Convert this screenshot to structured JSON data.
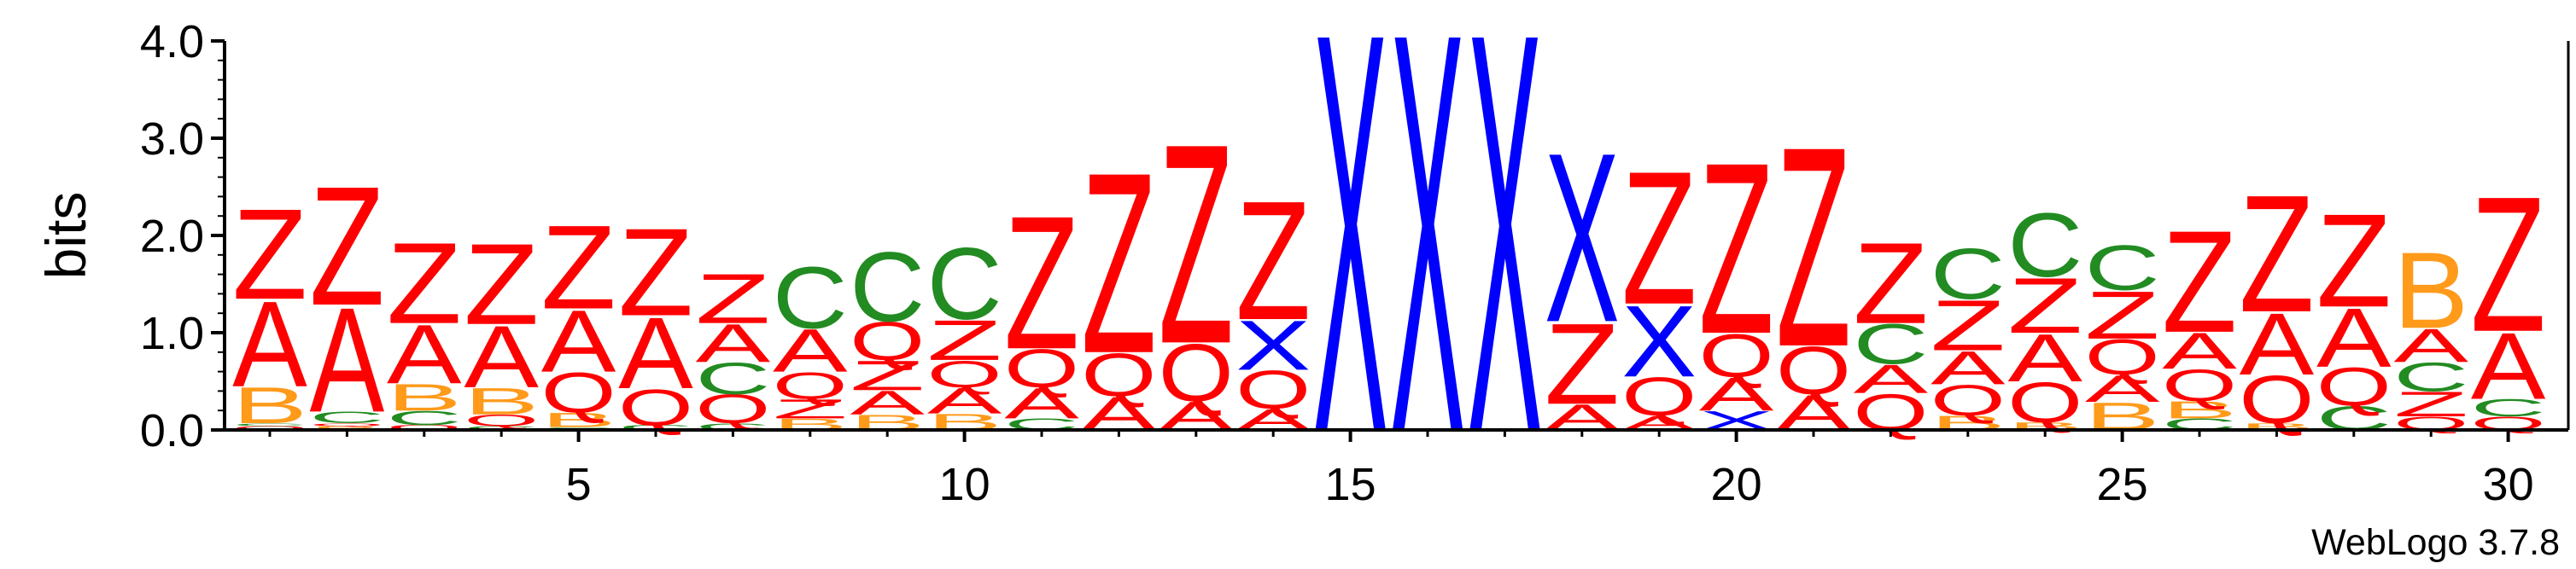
{
  "chart_data": {
    "type": "sequence-logo",
    "ylabel": "bits",
    "ylim": [
      0,
      4.0
    ],
    "y_ticks": [
      "0.0",
      "1.0",
      "2.0",
      "3.0",
      "4.0"
    ],
    "x_tick_labels": [
      "5",
      "10",
      "15",
      "20",
      "25",
      "30"
    ],
    "x_tick_positions": [
      5,
      10,
      15,
      20,
      25,
      30
    ],
    "footer": "WebLogo 3.7.8",
    "colors": {
      "Z": "#ff0000",
      "A": "#ff0000",
      "X": "#0000ff",
      "B": "#ff9a1a",
      "C": "#228b22",
      "Q": "#ff0000"
    },
    "stacks": [
      [
        [
          "Q",
          0.04
        ],
        [
          "C",
          0.03
        ],
        [
          "B",
          0.38
        ],
        [
          "A",
          0.9
        ],
        [
          "Z",
          0.95
        ]
      ],
      [
        [
          "B",
          0.04
        ],
        [
          "Q",
          0.03
        ],
        [
          "C",
          0.12
        ],
        [
          "A",
          1.1
        ],
        [
          "Z",
          1.25
        ]
      ],
      [
        [
          "Q",
          0.05
        ],
        [
          "C",
          0.15
        ],
        [
          "B",
          0.28
        ],
        [
          "A",
          0.62
        ],
        [
          "Z",
          0.85
        ]
      ],
      [
        [
          "C",
          0.04
        ],
        [
          "Q",
          0.12
        ],
        [
          "B",
          0.28
        ],
        [
          "A",
          0.65
        ],
        [
          "Z",
          0.85
        ]
      ],
      [
        [
          "C",
          0.03
        ],
        [
          "B",
          0.15
        ],
        [
          "Q",
          0.42
        ],
        [
          "A",
          0.65
        ],
        [
          "Z",
          0.88
        ]
      ],
      [
        [
          "C",
          0.05
        ],
        [
          "Q",
          0.38
        ],
        [
          "A",
          0.75
        ],
        [
          "Z",
          0.92
        ]
      ],
      [
        [
          "C",
          0.07
        ],
        [
          "Q",
          0.3
        ],
        [
          "C",
          0.33
        ],
        [
          "A",
          0.4
        ],
        [
          "Z",
          0.52
        ]
      ],
      [
        [
          "B",
          0.12
        ],
        [
          "Z",
          0.2
        ],
        [
          "Q",
          0.28
        ],
        [
          "A",
          0.45
        ],
        [
          "C",
          0.65
        ]
      ],
      [
        [
          "B",
          0.16
        ],
        [
          "A",
          0.25
        ],
        [
          "Z",
          0.31
        ],
        [
          "Q",
          0.4
        ],
        [
          "C",
          0.73
        ]
      ],
      [
        [
          "B",
          0.17
        ],
        [
          "A",
          0.27
        ],
        [
          "Q",
          0.28
        ],
        [
          "Z",
          0.42
        ],
        [
          "C",
          0.75
        ]
      ],
      [
        [
          "C",
          0.12
        ],
        [
          "A",
          0.32
        ],
        [
          "Q",
          0.4
        ],
        [
          "Z",
          1.4
        ]
      ],
      [
        [
          "A",
          0.35
        ],
        [
          "Q",
          0.45
        ],
        [
          "Z",
          1.9
        ]
      ],
      [
        [
          "A",
          0.3
        ],
        [
          "Q",
          0.6
        ],
        [
          "Z",
          2.1
        ]
      ],
      [
        [
          "A",
          0.22
        ],
        [
          "Q",
          0.4
        ],
        [
          "X",
          0.52
        ],
        [
          "Z",
          1.25
        ]
      ],
      [
        [
          "X",
          4.2
        ]
      ],
      [
        [
          "X",
          4.2
        ]
      ],
      [
        [
          "X",
          4.2
        ]
      ],
      [
        [
          "A",
          0.27
        ],
        [
          "Z",
          0.85
        ],
        [
          "X",
          1.78
        ]
      ],
      [
        [
          "A",
          0.15
        ],
        [
          "Q",
          0.4
        ],
        [
          "X",
          0.75
        ],
        [
          "Z",
          1.4
        ]
      ],
      [
        [
          "X",
          0.2
        ],
        [
          "A",
          0.35
        ],
        [
          "Q",
          0.45
        ],
        [
          "Z",
          1.8
        ]
      ],
      [
        [
          "A",
          0.37
        ],
        [
          "Q",
          0.5
        ],
        [
          "Z",
          2.1
        ]
      ],
      [
        [
          "Q",
          0.38
        ],
        [
          "A",
          0.3
        ],
        [
          "C",
          0.42
        ],
        [
          "Z",
          0.85
        ]
      ],
      [
        [
          "B",
          0.15
        ],
        [
          "Q",
          0.32
        ],
        [
          "A",
          0.35
        ],
        [
          "Z",
          0.53
        ],
        [
          "C",
          0.53
        ]
      ],
      [
        [
          "B",
          0.08
        ],
        [
          "Q",
          0.42
        ],
        [
          "A",
          0.5
        ],
        [
          "Z",
          0.58
        ],
        [
          "C",
          0.67
        ]
      ],
      [
        [
          "B",
          0.29
        ],
        [
          "A",
          0.28
        ],
        [
          "Q",
          0.37
        ],
        [
          "Z",
          0.5
        ],
        [
          "C",
          0.47
        ]
      ],
      [
        [
          "C",
          0.12
        ],
        [
          "B",
          0.18
        ],
        [
          "Q",
          0.33
        ],
        [
          "A",
          0.38
        ],
        [
          "Z",
          1.07
        ]
      ],
      [
        [
          "B",
          0.07
        ],
        [
          "Q",
          0.5
        ],
        [
          "A",
          0.65
        ],
        [
          "Z",
          1.23
        ]
      ],
      [
        [
          "C",
          0.25
        ],
        [
          "Q",
          0.4
        ],
        [
          "A",
          0.62
        ],
        [
          "Z",
          0.98
        ]
      ],
      [
        [
          "Q",
          0.14
        ],
        [
          "Z",
          0.26
        ],
        [
          "C",
          0.3
        ],
        [
          "A",
          0.35
        ],
        [
          "B",
          0.8
        ]
      ],
      [
        [
          "Q",
          0.14
        ],
        [
          "C",
          0.18
        ],
        [
          "A",
          0.7
        ],
        [
          "Z",
          1.42
        ]
      ]
    ]
  }
}
